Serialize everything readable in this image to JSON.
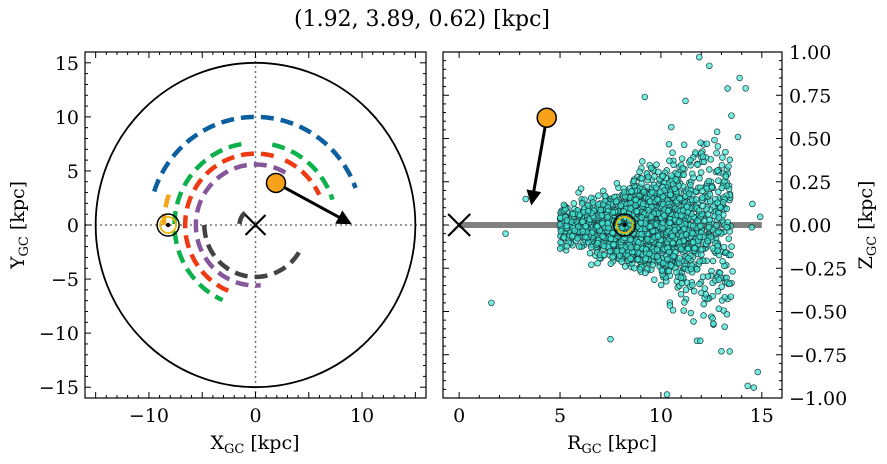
{
  "title": "(1.92, 3.89, 0.62) [kpc]",
  "chart_data": [
    {
      "type": "line",
      "panel": "left",
      "xlabel_main": "X",
      "xlabel_sub": "GC",
      "xlabel_unit": " [kpc]",
      "ylabel_main": "Y",
      "ylabel_sub": "GC",
      "ylabel_unit": " [kpc]",
      "xlim": [
        -16,
        16
      ],
      "ylim": [
        -16,
        16
      ],
      "xticks": [
        -10,
        0,
        10
      ],
      "yticks": [
        -15,
        -10,
        -5,
        0,
        5,
        10,
        15
      ],
      "grid": false,
      "boundary_circle_radius": 15,
      "galactic_center": [
        0,
        0
      ],
      "sun_position": [
        -8.2,
        0
      ],
      "object_position": [
        1.92,
        3.89
      ],
      "velocity_arrow_tip": [
        8.8,
        0.2
      ],
      "spiral_arms": [
        {
          "color": "#0b5f9f",
          "radius": 10.0,
          "theta_start": 162,
          "theta_end": 20
        },
        {
          "color": "#0db14b",
          "radius": 7.6,
          "theta_start": 100,
          "theta_end": 246
        },
        {
          "color": "#0db14b",
          "radius": 7.6,
          "theta_start": 78,
          "theta_end": 18
        },
        {
          "color": "#f6a41a",
          "radius": 8.6,
          "theta_start": 161,
          "theta_end": 180
        },
        {
          "color": "#ee3a12",
          "radius": 6.6,
          "theta_start": 75,
          "theta_end": 252
        },
        {
          "color": "#ee3a12",
          "radius": 6.6,
          "theta_start": 65,
          "theta_end": 25
        },
        {
          "color": "#86579a",
          "radius": 5.6,
          "theta_start": 60,
          "theta_end": 275
        },
        {
          "color": "#434343",
          "radius": 4.8,
          "theta_start": 180,
          "theta_end": 330
        },
        {
          "color": "#434343",
          "radius": 1.5,
          "theta_start": 130,
          "theta_end": 195
        }
      ]
    },
    {
      "type": "scatter",
      "panel": "right",
      "xlabel_main": "R",
      "xlabel_sub": "GC",
      "xlabel_unit": " [kpc]",
      "ylabel_main": "Z",
      "ylabel_sub": "GC",
      "ylabel_unit": " [kpc]",
      "xlim": [
        -0.8,
        16
      ],
      "ylim": [
        -1.0,
        1.0
      ],
      "xticks": [
        0,
        5,
        10,
        15
      ],
      "yticks": [
        -1.0,
        -0.75,
        -0.5,
        -0.25,
        0.0,
        0.25,
        0.5,
        0.75,
        1.0
      ],
      "ytick_labels": [
        "−1.00",
        "−0.75",
        "−0.50",
        "−0.25",
        "0.00",
        "0.25",
        "0.50",
        "0.75",
        "1.00"
      ],
      "grid": false,
      "disk_line": {
        "x": [
          0,
          15
        ],
        "y": 0,
        "color": "#808080"
      },
      "galactic_center": [
        0,
        0
      ],
      "sun_position": [
        8.2,
        0
      ],
      "object_position": [
        4.34,
        0.62
      ],
      "velocity_arrow_tip": [
        3.6,
        0.13
      ],
      "cloud": {
        "color": "#3ee6d6",
        "edge_color": "#1a3a3a",
        "count": 2600,
        "r_min": 5.0,
        "r_max": 13.5,
        "r_center": 8.8,
        "z_spread_inner": 0.06,
        "z_spread_outer": 0.3
      },
      "outlier_points": [
        [
          1.6,
          -0.45
        ],
        [
          3.3,
          0.15
        ],
        [
          2.3,
          -0.05
        ],
        [
          7.5,
          -0.66
        ],
        [
          11.9,
          0.97
        ],
        [
          13.9,
          0.85
        ],
        [
          14.3,
          -0.93
        ],
        [
          14.6,
          -0.94
        ],
        [
          14.2,
          0.79
        ],
        [
          12.6,
          -0.57
        ],
        [
          13.0,
          -0.73
        ],
        [
          10.3,
          -0.98
        ],
        [
          9.2,
          0.74
        ],
        [
          13.4,
          -0.34
        ],
        [
          14.8,
          -0.85
        ],
        [
          12.4,
          0.92
        ]
      ]
    }
  ]
}
